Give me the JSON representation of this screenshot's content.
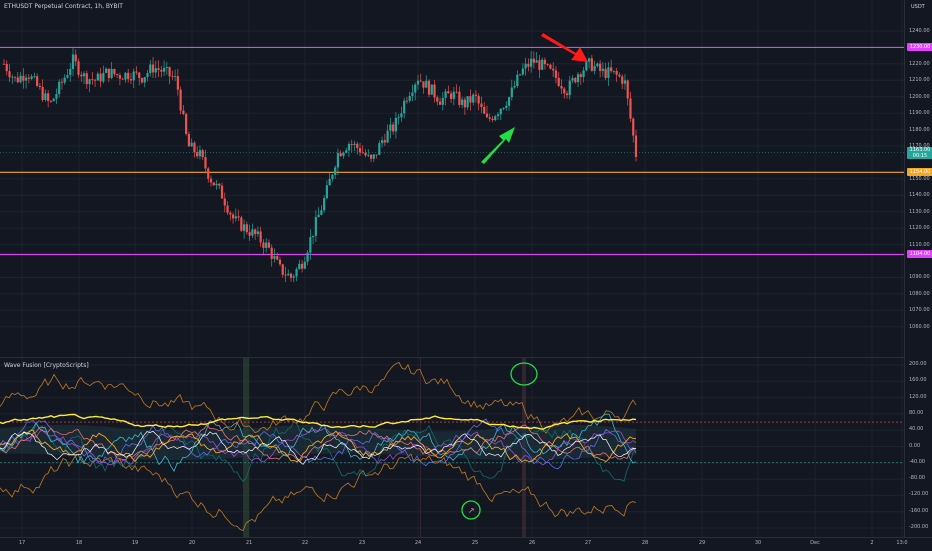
{
  "title": "ETHUSDT Perpetual Contract, 1h, BYBIT",
  "currency": "USDT",
  "indicator_title": "Wave Fusion [CryptoScripts]",
  "price_ticks": [
    "1240.00",
    "1220.00",
    "1210.00",
    "1200.00",
    "1190.00",
    "1180.00",
    "1170.00",
    "1150.00",
    "1140.00",
    "1130.00",
    "1120.00",
    "1110.00",
    "1090.00",
    "1080.00",
    "1070.00",
    "1060.00"
  ],
  "osc_ticks": [
    "200.00",
    "160.00",
    "120.00",
    "80.00",
    "40.00",
    "0.00",
    "-40.00",
    "-80.00",
    "-120.00",
    "-160.00",
    "-200.00"
  ],
  "date_ticks": [
    "17",
    "18",
    "19",
    "20",
    "21",
    "22",
    "23",
    "24",
    "25",
    "26",
    "27",
    "28",
    "29",
    "30",
    "Dec",
    "2",
    "13:0"
  ],
  "price_levels": [
    {
      "label": "1230.00",
      "color": "#e040fb"
    },
    {
      "label": "1154.00",
      "color": "#f5a623"
    },
    {
      "label": "1104.00",
      "color": "#e040fb"
    }
  ],
  "last_price": {
    "label": "1163.00",
    "sub": "00:15",
    "color": "#26a69a"
  },
  "colors": {
    "up": "#26a69a",
    "down": "#ef5350",
    "magenta": "#e040fb",
    "orange": "#f5a623",
    "arrow_red": "#ff1a1a",
    "arrow_green": "#22dd44",
    "grid": "#1e222d"
  },
  "chart_data": [
    {
      "type": "candlestick",
      "title": "ETHUSDT Perpetual Contract, 1h, BYBIT",
      "ylim": [
        1060,
        1250
      ],
      "x_start": "17",
      "x_end": "27",
      "close_path": [
        1220,
        1210,
        1215,
        1205,
        1195,
        1208,
        1222,
        1212,
        1210,
        1215,
        1213,
        1214,
        1212,
        1218,
        1215,
        1210,
        1170,
        1165,
        1150,
        1140,
        1125,
        1120,
        1115,
        1108,
        1095,
        1090,
        1100,
        1120,
        1140,
        1165,
        1172,
        1168,
        1160,
        1175,
        1182,
        1200,
        1212,
        1205,
        1198,
        1202,
        1195,
        1200,
        1185,
        1192,
        1200,
        1215,
        1222,
        1218,
        1212,
        1204,
        1215,
        1220,
        1215,
        1214,
        1210,
        1165
      ],
      "hlines": [
        1230,
        1154,
        1104
      ]
    },
    {
      "type": "line",
      "title": "Wave Fusion [CryptoScripts]",
      "ylim": [
        -210,
        210
      ],
      "hlines": [
        60,
        -40
      ]
    }
  ]
}
